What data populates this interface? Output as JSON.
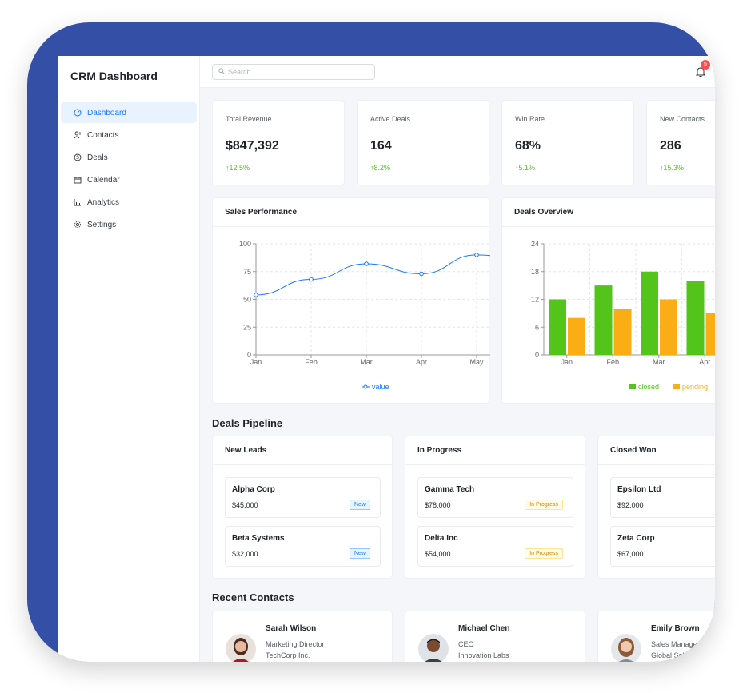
{
  "app": {
    "title": "CRM Dashboard"
  },
  "sidebar": {
    "items": [
      {
        "label": "Dashboard",
        "icon": "dashboard-icon",
        "active": true
      },
      {
        "label": "Contacts",
        "icon": "contacts-icon"
      },
      {
        "label": "Deals",
        "icon": "dollar-icon"
      },
      {
        "label": "Calendar",
        "icon": "calendar-icon"
      },
      {
        "label": "Analytics",
        "icon": "bar-chart-icon"
      },
      {
        "label": "Settings",
        "icon": "gear-icon"
      }
    ]
  },
  "header": {
    "search_placeholder": "Search...",
    "notification_count": "5"
  },
  "stats": [
    {
      "label": "Total Revenue",
      "value": "$847,392",
      "trend": "12.5%"
    },
    {
      "label": "Active Deals",
      "value": "164",
      "trend": "8.2%"
    },
    {
      "label": "Win Rate",
      "value": "68%",
      "trend": "5.1%"
    },
    {
      "label": "New Contacts",
      "value": "286",
      "trend": "15.3%"
    }
  ],
  "colors": {
    "accent": "#1677ff",
    "positive": "#52c41a",
    "closed": "#52c41a",
    "pending": "#faad14",
    "frame": "#344fa6"
  },
  "chart_data": [
    {
      "type": "line",
      "title": "Sales Performance",
      "x": [
        "Jan",
        "Feb",
        "Mar",
        "Apr",
        "May"
      ],
      "series": [
        {
          "name": "value",
          "values": [
            54,
            68,
            82,
            73,
            90
          ]
        }
      ],
      "yticks": [
        "0",
        "25",
        "50",
        "75",
        "100"
      ],
      "ylim": [
        0,
        100
      ],
      "grid": true,
      "legend": "bottom-center"
    },
    {
      "type": "bar",
      "title": "Deals Overview",
      "categories": [
        "Jan",
        "Feb",
        "Mar",
        "Apr"
      ],
      "series": [
        {
          "name": "closed",
          "values": [
            12,
            15,
            18,
            16
          ]
        },
        {
          "name": "pending",
          "values": [
            8,
            10,
            12,
            9
          ]
        }
      ],
      "yticks": [
        "0",
        "6",
        "12",
        "18",
        "24"
      ],
      "ylim": [
        0,
        24
      ],
      "grid": true,
      "legend": "bottom-right"
    }
  ],
  "pipeline": {
    "title": "Deals Pipeline",
    "columns": [
      {
        "title": "New Leads",
        "deals": [
          {
            "name": "Alpha Corp",
            "amount": "$45,000",
            "tag": "New",
            "tag_kind": "new"
          },
          {
            "name": "Beta Systems",
            "amount": "$32,000",
            "tag": "New",
            "tag_kind": "new"
          }
        ]
      },
      {
        "title": "In Progress",
        "deals": [
          {
            "name": "Gamma Tech",
            "amount": "$78,000",
            "tag": "In Progress",
            "tag_kind": "progress"
          },
          {
            "name": "Delta Inc",
            "amount": "$54,000",
            "tag": "In Progress",
            "tag_kind": "progress"
          }
        ]
      },
      {
        "title": "Closed Won",
        "deals": [
          {
            "name": "Epsilon Ltd",
            "amount": "$92,000"
          },
          {
            "name": "Zeta Corp",
            "amount": "$67,000"
          }
        ]
      }
    ]
  },
  "contacts": {
    "title": "Recent Contacts",
    "items": [
      {
        "name": "Sarah Wilson",
        "role": "Marketing Director",
        "company": "TechCorp Inc."
      },
      {
        "name": "Michael Chen",
        "role": "CEO",
        "company": "Innovation Labs"
      },
      {
        "name": "Emily Brown",
        "role": "Sales Manager",
        "company": "Global Solutions"
      }
    ]
  }
}
